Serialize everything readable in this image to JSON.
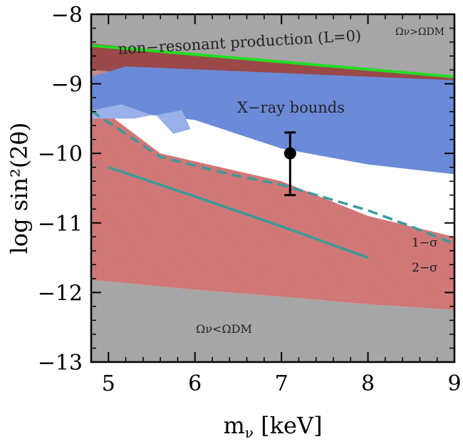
{
  "chart_data": {
    "type": "line",
    "xlabel": "mν [keV]",
    "ylabel": "log sin²(2θ)",
    "xlim": [
      4.8,
      9.0
    ],
    "ylim": [
      -13.0,
      -8.0
    ],
    "x_ticks": [
      5,
      6,
      7,
      8,
      9
    ],
    "y_ticks": [
      -8,
      -9,
      -10,
      -11,
      -12,
      -13
    ],
    "x_tick_labels": [
      "5",
      "6",
      "7",
      "8",
      "9"
    ],
    "y_tick_labels": [
      "−8",
      "−9",
      "−10",
      "−11",
      "−12",
      "−13"
    ],
    "grid": false,
    "colors": {
      "excluded_gray": "#a6a6a6",
      "xray_blue": "#6f8fdc",
      "allowed_red": "#d47c7c",
      "nonres_green": "#22dd22",
      "dashed_teal": "#3a9b9b",
      "point_black": "#000000"
    },
    "regions": [
      {
        "role": "overabundance",
        "points": [
          [
            4.8,
            -8.42
          ],
          [
            9.0,
            -8.92
          ],
          [
            9.0,
            -8.0
          ],
          [
            4.8,
            -8.0
          ]
        ]
      },
      {
        "role": "underabundance",
        "points": [
          [
            4.8,
            -11.82
          ],
          [
            6.0,
            -11.96
          ],
          [
            7.0,
            -12.06
          ],
          [
            8.0,
            -12.17
          ],
          [
            9.0,
            -12.25
          ],
          [
            9.0,
            -13.0
          ],
          [
            4.8,
            -13.0
          ]
        ]
      },
      {
        "role": "allowed-band",
        "points": [
          [
            4.8,
            -9.25
          ],
          [
            5.6,
            -10.0
          ],
          [
            7.0,
            -10.4
          ],
          [
            8.0,
            -10.9
          ],
          [
            9.0,
            -11.2
          ],
          [
            9.0,
            -12.25
          ],
          [
            8.0,
            -12.17
          ],
          [
            7.0,
            -12.06
          ],
          [
            6.0,
            -11.96
          ],
          [
            4.8,
            -11.82
          ]
        ]
      },
      {
        "role": "nonresonant-dark-band",
        "points": [
          [
            4.8,
            -8.42
          ],
          [
            9.0,
            -8.92
          ],
          [
            9.0,
            -9.05
          ],
          [
            6.0,
            -8.93
          ],
          [
            4.8,
            -8.8
          ]
        ]
      },
      {
        "role": "nonresonant-pink-band",
        "points": [
          [
            4.8,
            -8.8
          ],
          [
            6.0,
            -8.93
          ],
          [
            9.0,
            -9.05
          ],
          [
            9.0,
            -9.12
          ],
          [
            5.2,
            -9.05
          ],
          [
            4.8,
            -9.02
          ]
        ]
      },
      {
        "role": "xray-excluded",
        "points": [
          [
            4.8,
            -8.9
          ],
          [
            5.2,
            -8.75
          ],
          [
            9.0,
            -8.95
          ],
          [
            9.0,
            -10.3
          ],
          [
            8.0,
            -10.16
          ],
          [
            7.0,
            -9.93
          ],
          [
            6.0,
            -9.52
          ],
          [
            5.5,
            -9.45
          ],
          [
            5.15,
            -9.3
          ],
          [
            4.8,
            -9.38
          ]
        ]
      },
      {
        "role": "xray-light-wedge-left",
        "points": [
          [
            4.8,
            -9.38
          ],
          [
            5.15,
            -9.3
          ],
          [
            5.5,
            -9.45
          ],
          [
            5.3,
            -9.5
          ],
          [
            4.8,
            -9.5
          ]
        ]
      },
      {
        "role": "xray-light-wedge",
        "points": [
          [
            5.55,
            -9.45
          ],
          [
            5.85,
            -9.38
          ],
          [
            5.95,
            -9.65
          ],
          [
            5.75,
            -9.72
          ]
        ]
      }
    ],
    "series": [
      {
        "name": "non-resonant production (L=0)",
        "style": "solid",
        "points": [
          [
            4.8,
            -8.45
          ],
          [
            9.0,
            -8.9
          ]
        ]
      },
      {
        "style": "dashed",
        "points": [
          [
            4.8,
            -9.39
          ],
          [
            5.6,
            -10.05
          ],
          [
            6.4,
            -10.3
          ],
          [
            7.0,
            -10.45
          ],
          [
            8.0,
            -10.82
          ],
          [
            8.5,
            -11.05
          ],
          [
            9.0,
            -11.3
          ]
        ]
      },
      {
        "style": "solid",
        "points": [
          [
            5.0,
            -10.2
          ],
          [
            6.0,
            -10.62
          ],
          [
            7.0,
            -11.05
          ],
          [
            8.0,
            -11.5
          ]
        ]
      }
    ],
    "point": {
      "x": 7.1,
      "y": -10.0,
      "yerr_low": -10.6,
      "yerr_high": -9.7
    },
    "annotations": {
      "nonresonant": "non−resonant  production  (L=0)",
      "xray": "X−ray  bounds",
      "omega_over": "Ων>ΩDM",
      "omega_under": "Ων<ΩDM",
      "one_sigma": "1−σ",
      "two_sigma": "2−σ"
    }
  }
}
